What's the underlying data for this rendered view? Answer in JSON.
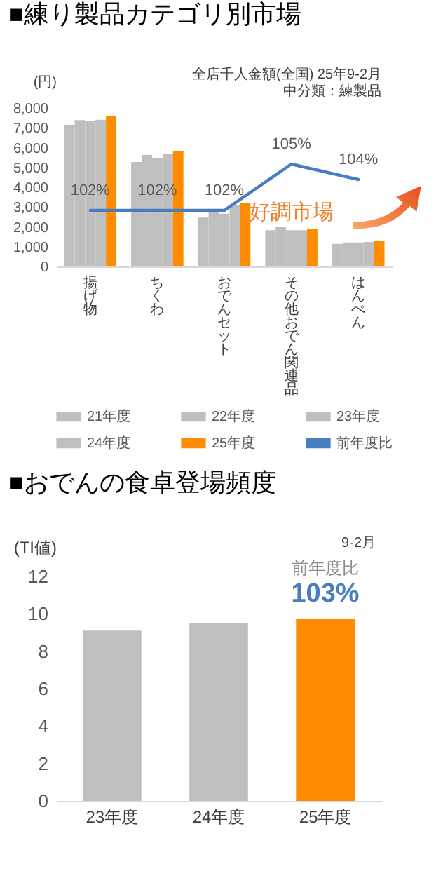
{
  "chart_data": [
    {
      "type": "bar",
      "title": "■練り製品カテゴリ別市場",
      "ylabel": "(円)",
      "categories": [
        "揚げ物",
        "ちくわ",
        "おでんセット",
        "その他おでん関連品",
        "はんぺん"
      ],
      "series": [
        {
          "name": "21年度",
          "color": "#bfbfbf",
          "values": [
            7150,
            5270,
            2470,
            1830,
            1140
          ]
        },
        {
          "name": "22年度",
          "color": "#bfbfbf",
          "values": [
            7390,
            5630,
            2730,
            2000,
            1210
          ]
        },
        {
          "name": "23年度",
          "color": "#bfbfbf",
          "values": [
            7360,
            5460,
            2660,
            1830,
            1210
          ]
        },
        {
          "name": "24年度",
          "color": "#bfbfbf",
          "values": [
            7410,
            5700,
            3110,
            1830,
            1240
          ]
        },
        {
          "name": "25年度",
          "color": "#ff8c00",
          "values": [
            7580,
            5820,
            3210,
            1900,
            1310
          ]
        },
        {
          "name": "前年度比",
          "type": "line",
          "axis": "y2",
          "color": "#4a7cc0",
          "values": [
            102,
            102,
            102,
            105,
            104
          ],
          "value_labels": [
            "102%",
            "102%",
            "102%",
            "105%",
            "104%"
          ]
        }
      ],
      "ylim": [
        0,
        8000
      ],
      "yticks": [
        0,
        {
          "value": 1000,
          "label": "1,000"
        },
        {
          "value": 2000,
          "label": "2,000"
        },
        {
          "value": 3000,
          "label": "3,000"
        },
        {
          "value": 4000,
          "label": "4,000"
        },
        {
          "value": 5000,
          "label": "5,000"
        },
        {
          "value": 6000,
          "label": "6,000"
        },
        {
          "value": 7000,
          "label": "7,000"
        },
        {
          "value": 8000,
          "label": "8,000"
        }
      ],
      "legend": "bottom",
      "annotations": [
        "全店千人金額(全国)  25年9-2月",
        "中分類：練製品",
        "好調市場"
      ]
    },
    {
      "type": "bar",
      "title": "■おでんの食卓登場頻度",
      "ylabel": "(TI値)",
      "categories": [
        "23年度",
        "24年度",
        "25年度"
      ],
      "values": [
        9.1,
        9.5,
        9.75
      ],
      "colors": [
        "#bfbfbf",
        "#bfbfbf",
        "#ff8c00"
      ],
      "ylim": [
        0,
        12
      ],
      "yticks": [
        0,
        2,
        4,
        6,
        8,
        10,
        12
      ],
      "annotations": [
        "9-2月",
        "前年度比",
        "103%"
      ]
    }
  ]
}
